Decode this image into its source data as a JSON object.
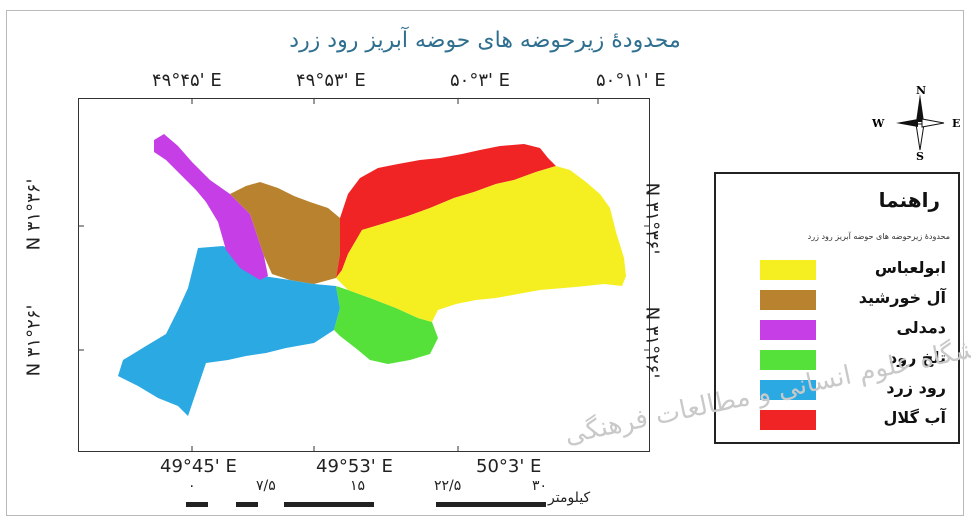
{
  "map": {
    "title": "محدودهٔ زیرحوضه های حوضه آبریز رود زرد",
    "top_longitudes": [
      "۴۹°۴۵' E",
      "۴۹°۵۳' E",
      "۵۰°۳' E",
      "۵۰°۱۱' E"
    ],
    "bottom_longitudes": [
      "49°45' E",
      "49°53' E",
      "50°3' E"
    ],
    "left_latitudes": [
      "N ۳۱°۳۶'",
      "N ۳۱°۲۶'"
    ],
    "right_latitudes": [
      "N ۳۱°۳۶'",
      "N ۳۱°۲۶'"
    ],
    "north_arrow": {
      "n": "N",
      "s": "S",
      "e": "E",
      "w": "W"
    },
    "watermark": "پژوهشگاه علوم انسانی و مطالعات فرهنگی"
  },
  "legend": {
    "title": "راهنما",
    "subtitle": "محدودهٔ زیرحوضه های حوضه آبریز رود زرد",
    "items": [
      {
        "label": "ابولعباس",
        "color": "#f5ef22"
      },
      {
        "label": "آل خورشید",
        "color": "#b8822e"
      },
      {
        "label": "دمدلی",
        "color": "#c63fe6"
      },
      {
        "label": "تلخ رود",
        "color": "#56e13a"
      },
      {
        "label": "رود زرد",
        "color": "#2aa9e3"
      },
      {
        "label": "آب گلال",
        "color": "#f02424"
      }
    ]
  },
  "scale_bar": {
    "ticks": [
      "۰",
      "۷/۵",
      "۱۵",
      "۲۲/۵",
      "۳۰"
    ],
    "unit": "کیلومتر"
  }
}
